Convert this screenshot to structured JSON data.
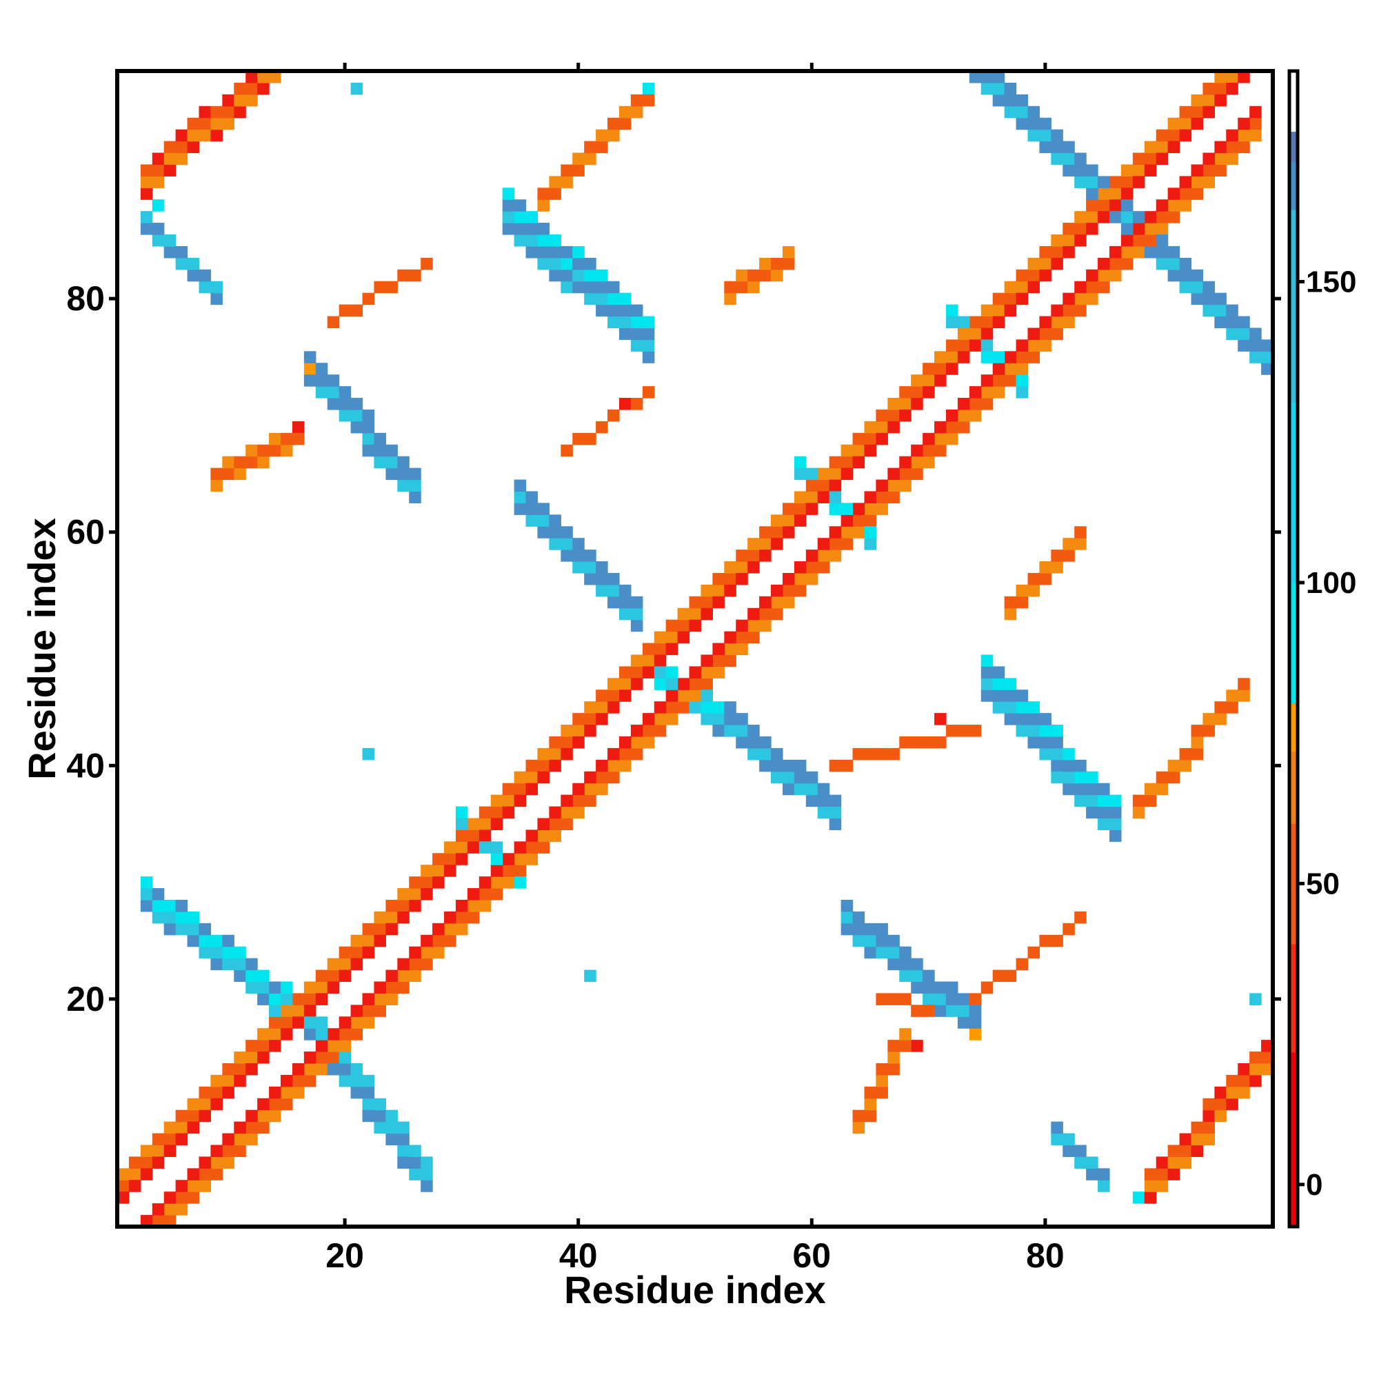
{
  "chart_data": {
    "type": "heatmap",
    "title": "",
    "xlabel": "Residue index",
    "ylabel": "Residue index",
    "xlim": [
      0.5,
      99.5
    ],
    "ylim": [
      0.5,
      99.5
    ],
    "x_ticks": [
      20,
      40,
      60,
      80
    ],
    "y_ticks": [
      20,
      40,
      60,
      80
    ],
    "grid": false,
    "colorbar": {
      "ticks": [
        0,
        50,
        100,
        150
      ],
      "range": [
        -7,
        185
      ],
      "stops": [
        {
          "value": -7,
          "color": "#e8000b"
        },
        {
          "value": 22,
          "color": "#ee3010"
        },
        {
          "value": 40,
          "color": "#f05a1a"
        },
        {
          "value": 60,
          "color": "#f07f1a"
        },
        {
          "value": 72,
          "color": "#ff9900"
        },
        {
          "value": 80,
          "color": "#00e5ee"
        },
        {
          "value": 100,
          "color": "#1ed2ee"
        },
        {
          "value": 130,
          "color": "#35bedc"
        },
        {
          "value": 162,
          "color": "#4a8ec9"
        },
        {
          "value": 170,
          "color": "#5878b0"
        },
        {
          "value": 175,
          "color": "#ffffff"
        },
        {
          "value": 185,
          "color": "#ffffff"
        }
      ]
    },
    "cell_colors": {
      "red": "#ee1c10",
      "orange_red": "#f25a10",
      "orange": "#f58a10",
      "amber": "#ff9900",
      "cyan_bright": "#00e5ee",
      "cyan": "#2cc6e0",
      "steel_blue": "#4a8ec9"
    },
    "contact_bands": [
      {
        "kind": "parallel",
        "pairs": [
          [
            1,
            1
          ],
          [
            98,
            98
          ]
        ],
        "offsets": [
          -4,
          -3,
          3,
          4
        ],
        "colors": [
          "orange_red",
          "orange",
          "orange_red",
          "orange"
        ]
      },
      {
        "kind": "parallel",
        "pairs": [
          [
            1,
            1
          ],
          [
            98,
            98
          ]
        ],
        "offsets": [
          -2,
          2
        ],
        "colors": [
          "red",
          "red"
        ]
      },
      {
        "kind": "antiparallel",
        "pairs": [
          [
            3,
            28
          ],
          [
            17,
            17
          ]
        ],
        "width": 3,
        "colors": [
          "steel_blue",
          "cyan",
          "cyan_bright"
        ]
      },
      {
        "kind": "antiparallel",
        "pairs": [
          [
            17,
            17
          ],
          [
            27,
            4
          ]
        ],
        "width": 3,
        "colors": [
          "cyan",
          "steel_blue",
          "cyan"
        ]
      },
      {
        "kind": "antiparallel",
        "pairs": [
          [
            30,
            35
          ],
          [
            35,
            30
          ]
        ],
        "width": 2,
        "colors": [
          "cyan",
          "cyan_bright"
        ]
      },
      {
        "kind": "antiparallel",
        "pairs": [
          [
            17,
            73
          ],
          [
            26,
            63
          ]
        ],
        "width": 3,
        "colors": [
          "steel_blue",
          "cyan",
          "steel_blue"
        ]
      },
      {
        "kind": "antiparallel",
        "pairs": [
          [
            35,
            62
          ],
          [
            45,
            52
          ]
        ],
        "width": 3,
        "colors": [
          "steel_blue",
          "cyan",
          "steel_blue"
        ]
      },
      {
        "kind": "antiparallel",
        "pairs": [
          [
            34,
            86
          ],
          [
            46,
            75
          ]
        ],
        "width": 4,
        "colors": [
          "steel_blue",
          "cyan",
          "steel_blue",
          "cyan_bright"
        ]
      },
      {
        "kind": "antiparallel",
        "pairs": [
          [
            46,
            48
          ],
          [
            52,
            44
          ]
        ],
        "width": 2,
        "colors": [
          "cyan",
          "cyan_bright"
        ]
      },
      {
        "kind": "antiparallel",
        "pairs": [
          [
            50,
            45
          ],
          [
            62,
            35
          ]
        ],
        "width": 3,
        "colors": [
          "steel_blue",
          "cyan",
          "steel_blue"
        ]
      },
      {
        "kind": "antiparallel",
        "pairs": [
          [
            59,
            65
          ],
          [
            65,
            59
          ]
        ],
        "width": 2,
        "colors": [
          "cyan",
          "cyan_bright"
        ]
      },
      {
        "kind": "antiparallel",
        "pairs": [
          [
            63,
            26
          ],
          [
            74,
            17
          ]
        ],
        "width": 3,
        "colors": [
          "steel_blue",
          "cyan",
          "steel_blue"
        ]
      },
      {
        "kind": "antiparallel",
        "pairs": [
          [
            72,
            78
          ],
          [
            78,
            72
          ]
        ],
        "width": 2,
        "colors": [
          "cyan",
          "cyan_bright"
        ]
      },
      {
        "kind": "antiparallel",
        "pairs": [
          [
            75,
            46
          ],
          [
            86,
            34
          ]
        ],
        "width": 4,
        "colors": [
          "steel_blue",
          "cyan",
          "steel_blue",
          "cyan_bright"
        ]
      },
      {
        "kind": "antiparallel",
        "pairs": [
          [
            81,
            8
          ],
          [
            85,
            4
          ]
        ],
        "width": 2,
        "colors": [
          "cyan",
          "steel_blue"
        ]
      },
      {
        "kind": "antiparallel",
        "pairs": [
          [
            74,
            99
          ],
          [
            86,
            87
          ]
        ],
        "width": 3,
        "colors": [
          "steel_blue",
          "cyan",
          "steel_blue"
        ]
      },
      {
        "kind": "antiparallel",
        "pairs": [
          [
            87,
            86
          ],
          [
            99,
            74
          ]
        ],
        "width": 3,
        "colors": [
          "steel_blue",
          "cyan",
          "steel_blue"
        ]
      },
      {
        "kind": "antiparallel",
        "pairs": [
          [
            3,
            86
          ],
          [
            9,
            80
          ]
        ],
        "width": 2,
        "colors": [
          "steel_blue",
          "cyan"
        ]
      },
      {
        "kind": "antiparallel",
        "pairs": [
          [
            3,
            89
          ],
          [
            14,
            99
          ]
        ],
        "width": 3,
        "colors": [
          "red",
          "orange",
          "orange_red"
        ]
      },
      {
        "kind": "antiparallel",
        "pairs": [
          [
            89,
            3
          ],
          [
            99,
            14
          ]
        ],
        "width": 3,
        "colors": [
          "red",
          "orange",
          "orange_red"
        ]
      },
      {
        "kind": "antiparallel",
        "pairs": [
          [
            9,
            64
          ],
          [
            16,
            68
          ]
        ],
        "width": 2,
        "colors": [
          "orange",
          "orange_red"
        ]
      },
      {
        "kind": "antiparallel",
        "pairs": [
          [
            64,
            9
          ],
          [
            68,
            16
          ]
        ],
        "width": 2,
        "colors": [
          "orange",
          "orange_red"
        ]
      },
      {
        "kind": "antiparallel",
        "pairs": [
          [
            37,
            88
          ],
          [
            46,
            97
          ]
        ],
        "width": 2,
        "colors": [
          "orange",
          "orange_red"
        ]
      },
      {
        "kind": "antiparallel",
        "pairs": [
          [
            88,
            36
          ],
          [
            97,
            46
          ]
        ],
        "width": 2,
        "colors": [
          "orange",
          "orange_red"
        ]
      },
      {
        "kind": "antiparallel",
        "pairs": [
          [
            53,
            80
          ],
          [
            58,
            83
          ]
        ],
        "width": 2,
        "colors": [
          "orange",
          "orange_red"
        ]
      },
      {
        "kind": "antiparallel",
        "pairs": [
          [
            77,
            53
          ],
          [
            83,
            59
          ]
        ],
        "width": 2,
        "colors": [
          "orange",
          "orange_red"
        ]
      },
      {
        "kind": "antiparallel",
        "pairs": [
          [
            62,
            40
          ],
          [
            74,
            43
          ]
        ],
        "width": 1,
        "colors": [
          "orange_red"
        ]
      },
      {
        "kind": "antiparallel",
        "pairs": [
          [
            66,
            20
          ],
          [
            74,
            18
          ]
        ],
        "width": 1,
        "colors": [
          "orange_red"
        ]
      },
      {
        "kind": "antiparallel",
        "pairs": [
          [
            19,
            78
          ],
          [
            27,
            83
          ]
        ],
        "width": 1,
        "colors": [
          "orange_red"
        ]
      },
      {
        "kind": "antiparallel",
        "pairs": [
          [
            39,
            67
          ],
          [
            46,
            72
          ]
        ],
        "width": 1,
        "colors": [
          "orange_red"
        ]
      },
      {
        "kind": "antiparallel",
        "pairs": [
          [
            74,
            20
          ],
          [
            83,
            27
          ]
        ],
        "width": 1,
        "colors": [
          "orange_red"
        ]
      }
    ],
    "isolated_contacts": [
      {
        "x": 21,
        "y": 98,
        "color": "cyan"
      },
      {
        "x": 22,
        "y": 41,
        "color": "cyan"
      },
      {
        "x": 41,
        "y": 22,
        "color": "cyan"
      },
      {
        "x": 98,
        "y": 20,
        "color": "cyan"
      },
      {
        "x": 46,
        "y": 98,
        "color": "cyan_bright"
      },
      {
        "x": 4,
        "y": 88,
        "color": "cyan_bright"
      },
      {
        "x": 88,
        "y": 3,
        "color": "cyan_bright"
      },
      {
        "x": 71,
        "y": 44,
        "color": "red"
      },
      {
        "x": 44,
        "y": 71,
        "color": "red"
      },
      {
        "x": 69,
        "y": 16,
        "color": "red"
      },
      {
        "x": 16,
        "y": 69,
        "color": "red"
      },
      {
        "x": 17,
        "y": 74,
        "color": "amber"
      },
      {
        "x": 74,
        "y": 17,
        "color": "amber"
      }
    ]
  }
}
